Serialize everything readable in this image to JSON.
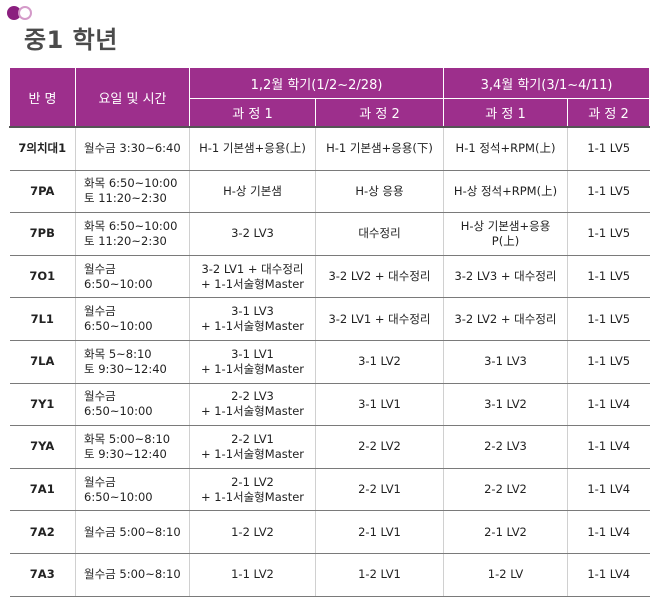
{
  "page_title": "중1 학년",
  "table": {
    "headers": {
      "class": "반 명",
      "schedule": "요일 및 시간",
      "term1": "1,2월 학기(1/2~2/28)",
      "term2": "3,4월 학기(3/1~4/11)",
      "course1": "과 정 1",
      "course2": "과 정 2"
    },
    "rows": [
      {
        "class": "7의치대1",
        "time": "월수금 3:30~6:40",
        "t1c1": "H-1 기본샘+응용(上)",
        "t1c2": "H-1 기본샘+응용(下)",
        "t2c1": "H-1 정석+RPM(上)",
        "t2c2": "1-1 LV5"
      },
      {
        "class": "7PA",
        "time": "화목 6:50~10:00\n토 11:20~2:30",
        "t1c1": "H-상 기본샘",
        "t1c2": "H-상 응용",
        "t2c1": "H-상 정석+RPM(上)",
        "t2c2": "1-1 LV5"
      },
      {
        "class": "7PB",
        "time": "화목 6:50~10:00\n토 11:20~2:30",
        "t1c1": "3-2 LV3",
        "t1c2": "대수정리",
        "t2c1": "H-상  기본샘+응용P(上)",
        "t2c2": "1-1 LV5"
      },
      {
        "class": "7O1",
        "time": "월수금 6:50~10:00",
        "t1c1": "3-2 LV1 + 대수정리\n+ 1-1서술형Master",
        "t1c2": "3-2 LV2 + 대수정리",
        "t2c1": "3-2 LV3 + 대수정리",
        "t2c2": "1-1 LV5"
      },
      {
        "class": "7L1",
        "time": "월수금 6:50~10:00",
        "t1c1": "3-1 LV3\n+ 1-1서술형Master",
        "t1c2": "3-2 LV1 + 대수정리",
        "t2c1": "3-2 LV2 + 대수정리",
        "t2c2": "1-1 LV5"
      },
      {
        "class": "7LA",
        "time": "화목 5~8:10\n토 9:30~12:40",
        "t1c1": "3-1 LV1\n+ 1-1서술형Master",
        "t1c2": "3-1 LV2",
        "t2c1": "3-1 LV3",
        "t2c2": "1-1 LV5"
      },
      {
        "class": "7Y1",
        "time": "월수금 6:50~10:00",
        "t1c1": "2-2 LV3\n+ 1-1서술형Master",
        "t1c2": "3-1 LV1",
        "t2c1": "3-1 LV2",
        "t2c2": "1-1 LV4"
      },
      {
        "class": "7YA",
        "time": "화목 5:00~8:10\n토 9:30~12:40",
        "t1c1": "2-2 LV1\n+ 1-1서술형Master",
        "t1c2": "2-2 LV2",
        "t2c1": "2-2 LV3",
        "t2c2": "1-1 LV4"
      },
      {
        "class": "7A1",
        "time": "월수금 6:50~10:00",
        "t1c1": "2-1 LV2\n+ 1-1서술형Master",
        "t1c2": "2-2 LV1",
        "t2c1": "2-2 LV2",
        "t2c2": "1-1 LV4"
      },
      {
        "class": "7A2",
        "time": "월수금 5:00~8:10",
        "t1c1": "1-2 LV2",
        "t1c2": "2-1 LV1",
        "t2c1": "2-1 LV2",
        "t2c2": "1-1 LV4"
      },
      {
        "class": "7A3",
        "time": "월수금 5:00~8:10",
        "t1c1": "1-1 LV2",
        "t1c2": "1-2 LV1",
        "t2c1": "1-2 LV",
        "t2c2": "1-1 LV4"
      }
    ]
  }
}
